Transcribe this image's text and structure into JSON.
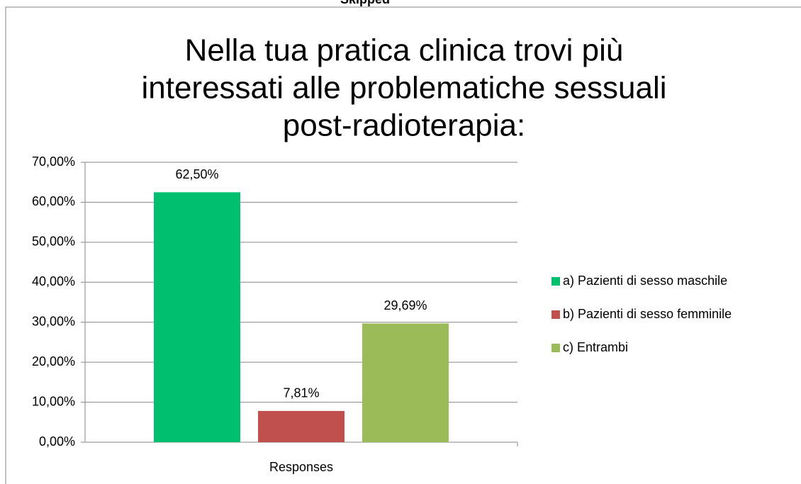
{
  "chart_data": {
    "type": "bar",
    "header_fragment": "Skipped",
    "title": [
      "Nella tua pratica clinica trovi più",
      "interessati alle problematiche sessuali",
      "post-radioterapia:"
    ],
    "categories": [
      "Responses"
    ],
    "series": [
      {
        "name": "a) Pazienti di sesso maschile",
        "color": "#00bf6f",
        "values": [
          62.5
        ],
        "value_labels": [
          "62,50%"
        ]
      },
      {
        "name": "b) Pazienti di sesso femminile",
        "color": "#c0504d",
        "values": [
          7.81
        ],
        "value_labels": [
          "7,81%"
        ]
      },
      {
        "name": "c) Entrambi",
        "color": "#9bbb59",
        "values": [
          29.69
        ],
        "value_labels": [
          "29,69%"
        ]
      }
    ],
    "ylim": [
      0,
      70
    ],
    "yticks": [
      {
        "value": 0,
        "label": "0,00%"
      },
      {
        "value": 10,
        "label": "10,00%"
      },
      {
        "value": 20,
        "label": "20,00%"
      },
      {
        "value": 30,
        "label": "30,00%"
      },
      {
        "value": 40,
        "label": "40,00%"
      },
      {
        "value": 50,
        "label": "50,00%"
      },
      {
        "value": 60,
        "label": "60,00%"
      },
      {
        "value": 70,
        "label": "70,00%"
      }
    ],
    "grid": true,
    "legend": "right"
  }
}
